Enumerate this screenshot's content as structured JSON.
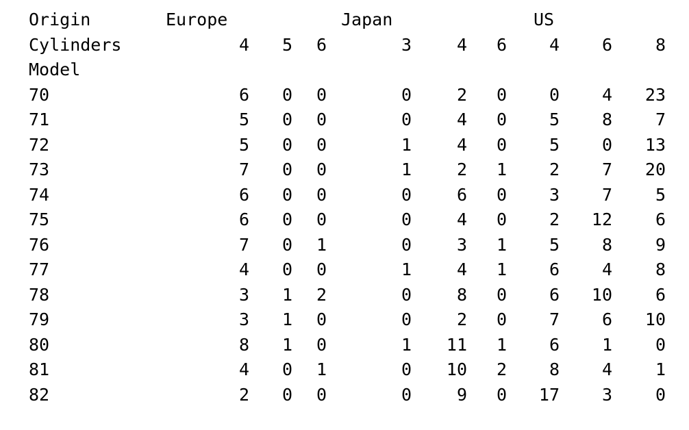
{
  "table": {
    "origin_label": "Origin",
    "cylinders_label": "Cylinders",
    "index_label": "Model",
    "origins": [
      "Europe",
      "Japan",
      "US"
    ],
    "cylinders": [
      "4",
      "5",
      "6",
      "3",
      "4",
      "6",
      "4",
      "6",
      "8"
    ],
    "rows": [
      {
        "model": "70",
        "values": [
          "6",
          "0",
          "0",
          "0",
          "2",
          "0",
          "0",
          "4",
          "23"
        ]
      },
      {
        "model": "71",
        "values": [
          "5",
          "0",
          "0",
          "0",
          "4",
          "0",
          "5",
          "8",
          "7"
        ]
      },
      {
        "model": "72",
        "values": [
          "5",
          "0",
          "0",
          "1",
          "4",
          "0",
          "5",
          "0",
          "13"
        ]
      },
      {
        "model": "73",
        "values": [
          "7",
          "0",
          "0",
          "1",
          "2",
          "1",
          "2",
          "7",
          "20"
        ]
      },
      {
        "model": "74",
        "values": [
          "6",
          "0",
          "0",
          "0",
          "6",
          "0",
          "3",
          "7",
          "5"
        ]
      },
      {
        "model": "75",
        "values": [
          "6",
          "0",
          "0",
          "0",
          "4",
          "0",
          "2",
          "12",
          "6"
        ]
      },
      {
        "model": "76",
        "values": [
          "7",
          "0",
          "1",
          "0",
          "3",
          "1",
          "5",
          "8",
          "9"
        ]
      },
      {
        "model": "77",
        "values": [
          "4",
          "0",
          "0",
          "1",
          "4",
          "1",
          "6",
          "4",
          "8"
        ]
      },
      {
        "model": "78",
        "values": [
          "3",
          "1",
          "2",
          "0",
          "8",
          "0",
          "6",
          "10",
          "6"
        ]
      },
      {
        "model": "79",
        "values": [
          "3",
          "1",
          "0",
          "0",
          "2",
          "0",
          "7",
          "6",
          "10"
        ]
      },
      {
        "model": "80",
        "values": [
          "8",
          "1",
          "0",
          "1",
          "11",
          "1",
          "6",
          "1",
          "0"
        ]
      },
      {
        "model": "81",
        "values": [
          "4",
          "0",
          "1",
          "0",
          "10",
          "2",
          "8",
          "4",
          "1"
        ]
      },
      {
        "model": "82",
        "values": [
          "2",
          "0",
          "0",
          "0",
          "9",
          "0",
          "17",
          "3",
          "0"
        ]
      }
    ]
  }
}
